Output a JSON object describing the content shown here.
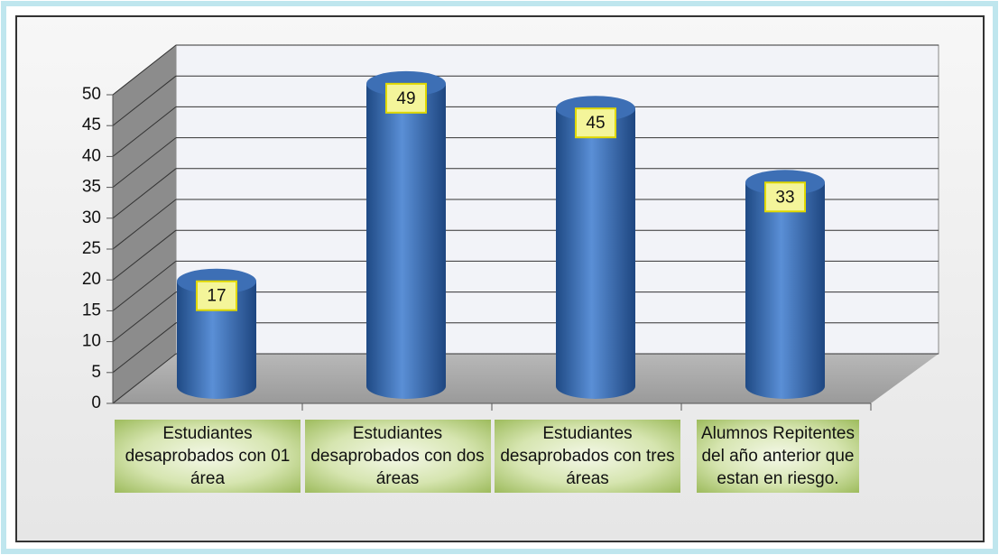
{
  "chart_data": {
    "type": "bar",
    "categories": [
      "Estudiantes desaprobados con 01 área",
      "Estudiantes desaprobados con dos áreas",
      "Estudiantes desaprobados con tres áreas",
      "Alumnos Repitentes del año anterior que estan en riesgo."
    ],
    "values": [
      17,
      49,
      45,
      33
    ],
    "color": "#4a7ec4",
    "ylim": [
      0,
      50
    ],
    "yticks": [
      0,
      5,
      10,
      15,
      20,
      25,
      30,
      35,
      40,
      45,
      50
    ],
    "grid": true
  }
}
